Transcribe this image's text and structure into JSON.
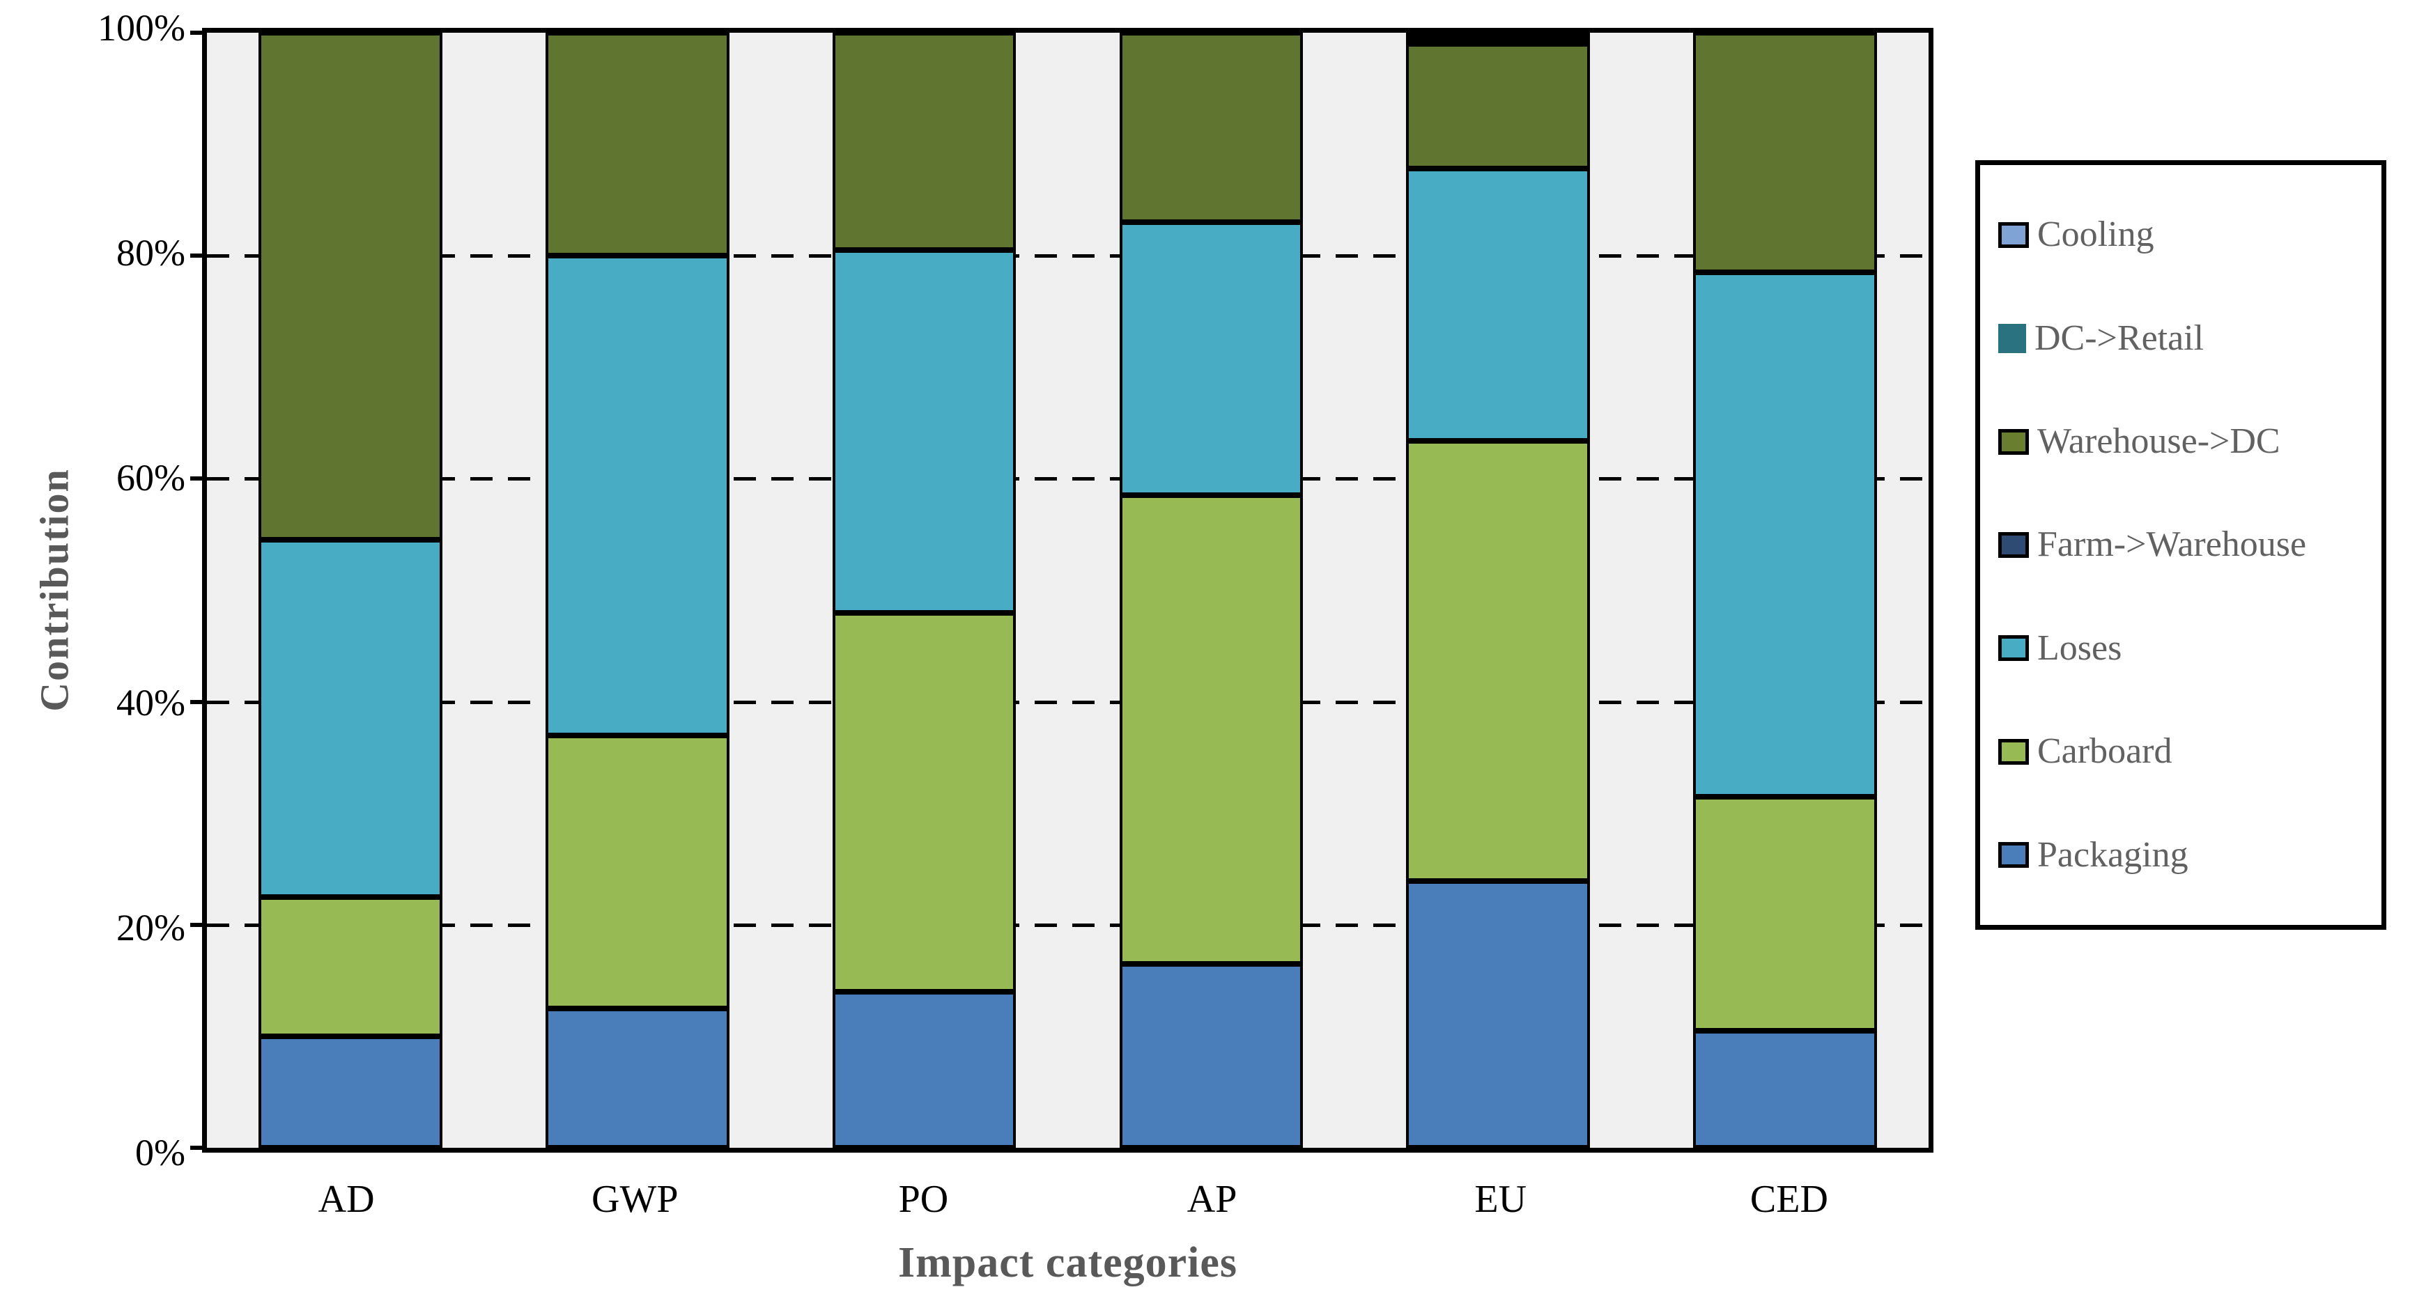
{
  "figure": {
    "background": "#ffffff",
    "plot_background": "#f0f0f0",
    "frame_color": "#000000"
  },
  "y_axis": {
    "title": "Contribution",
    "tick_labels": [
      "0%",
      "20%",
      "40%",
      "60%",
      "80%",
      "100%"
    ],
    "tick_values": [
      0,
      20,
      40,
      60,
      80,
      100
    ]
  },
  "x_axis": {
    "title": "Impact categories",
    "categories": [
      "AD",
      "GWP",
      "PO",
      "AP",
      "EU",
      "CED"
    ]
  },
  "legend": {
    "position": "right",
    "items": [
      {
        "label": "Cooling",
        "color": "#7FA3D5",
        "swatch_border": true
      },
      {
        "label": "DC->Retail",
        "color": "#2B7280",
        "swatch_border": false
      },
      {
        "label": "Warehouse->DC",
        "color": "#697E2F",
        "swatch_border": true
      },
      {
        "label": "Farm->Warehouse",
        "color": "#2E4B73",
        "swatch_border": true
      },
      {
        "label": "Loses",
        "color": "#49ACC5",
        "swatch_border": true
      },
      {
        "label": "Carboard",
        "color": "#97BA55",
        "swatch_border": true
      },
      {
        "label": "Packaging",
        "color": "#4A7EBB",
        "swatch_border": true
      }
    ]
  },
  "chart_data": {
    "type": "bar",
    "subtype": "stacked-100-percent",
    "title": "",
    "xlabel": "Impact categories",
    "ylabel": "Contribution",
    "ylim": [
      0,
      100
    ],
    "y_tick_step": 20,
    "grid": "horizontal dashed black lines at 20% steps",
    "legend_position": "right",
    "categories": [
      "AD",
      "GWP",
      "PO",
      "AP",
      "EU",
      "CED"
    ],
    "series": [
      {
        "name": "Packaging",
        "color": "#4A7EBB",
        "values": [
          10,
          12.5,
          14,
          16.5,
          24,
          10.5
        ]
      },
      {
        "name": "Carboard",
        "color": "#97BA55",
        "values": [
          12.5,
          24.5,
          34,
          42,
          39.5,
          21
        ]
      },
      {
        "name": "Loses",
        "color": "#49ACC5",
        "values": [
          32,
          43,
          32.5,
          24.5,
          24.5,
          47
        ]
      },
      {
        "name": "Farm->Warehouse",
        "color": "#2E4B73",
        "values": [
          0,
          0,
          0,
          0,
          0,
          0
        ]
      },
      {
        "name": "Warehouse->DC",
        "color": "#5F7530",
        "values": [
          45.5,
          20,
          19.5,
          17,
          11.2,
          21.5
        ]
      },
      {
        "name": "DC->Retail",
        "color": "#2B7280",
        "values": [
          0,
          0,
          0,
          0,
          0.5,
          0
        ]
      },
      {
        "name": "Cooling",
        "color": "#7FA3D5",
        "values": [
          0,
          0,
          0,
          0,
          0.3,
          0
        ]
      }
    ],
    "segment_tops_percent": {
      "AD": {
        "Packaging": 10,
        "Carboard": 22.5,
        "Loses": 54.5,
        "Warehouse->DC": 100
      },
      "GWP": {
        "Packaging": 12.5,
        "Carboard": 37,
        "Loses": 80,
        "Warehouse->DC": 100
      },
      "PO": {
        "Packaging": 14,
        "Carboard": 48,
        "Loses": 80.5,
        "Warehouse->DC": 100
      },
      "AP": {
        "Packaging": 16.5,
        "Carboard": 58.5,
        "Loses": 83,
        "Warehouse->DC": 100
      },
      "EU": {
        "Packaging": 24,
        "Carboard": 63.5,
        "Loses": 88,
        "Warehouse->DC": 99.2
      },
      "CED": {
        "Packaging": 10.5,
        "Carboard": 31.5,
        "Loses": 78.5,
        "Warehouse->DC": 100
      }
    }
  }
}
